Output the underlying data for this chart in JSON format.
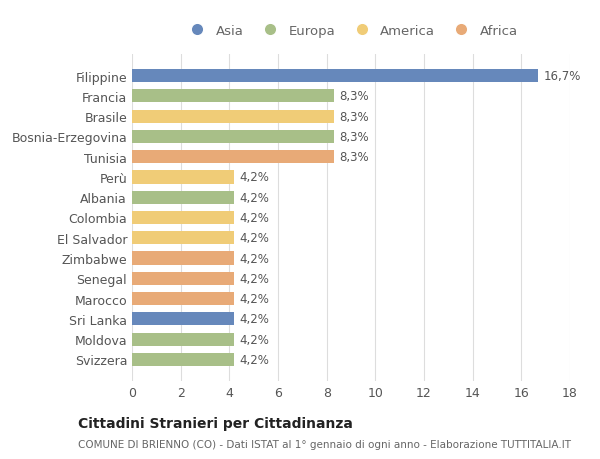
{
  "title": "Cittadini Stranieri per Cittadinanza",
  "subtitle": "COMUNE DI BRIENNO (CO) - Dati ISTAT al 1° gennaio di ogni anno - Elaborazione TUTTITALIA.IT",
  "categories": [
    "Filippine",
    "Francia",
    "Brasile",
    "Bosnia-Erzegovina",
    "Tunisia",
    "Perù",
    "Albania",
    "Colombia",
    "El Salvador",
    "Zimbabwe",
    "Senegal",
    "Marocco",
    "Sri Lanka",
    "Moldova",
    "Svizzera"
  ],
  "values": [
    16.7,
    8.3,
    8.3,
    8.3,
    8.3,
    4.2,
    4.2,
    4.2,
    4.2,
    4.2,
    4.2,
    4.2,
    4.2,
    4.2,
    4.2
  ],
  "labels": [
    "16,7%",
    "8,3%",
    "8,3%",
    "8,3%",
    "8,3%",
    "4,2%",
    "4,2%",
    "4,2%",
    "4,2%",
    "4,2%",
    "4,2%",
    "4,2%",
    "4,2%",
    "4,2%",
    "4,2%"
  ],
  "colors": [
    "#6688bb",
    "#a8bf88",
    "#f0cc77",
    "#a8bf88",
    "#e8aa77",
    "#f0cc77",
    "#a8bf88",
    "#f0cc77",
    "#f0cc77",
    "#e8aa77",
    "#e8aa77",
    "#e8aa77",
    "#6688bb",
    "#a8bf88",
    "#a8bf88"
  ],
  "legend": [
    {
      "label": "Asia",
      "color": "#6688bb"
    },
    {
      "label": "Europa",
      "color": "#a8bf88"
    },
    {
      "label": "America",
      "color": "#f0cc77"
    },
    {
      "label": "Africa",
      "color": "#e8aa77"
    }
  ],
  "xlim": [
    0,
    18
  ],
  "xticks": [
    0,
    2,
    4,
    6,
    8,
    10,
    12,
    14,
    16,
    18
  ],
  "background_color": "#ffffff",
  "grid_color": "#dddddd"
}
